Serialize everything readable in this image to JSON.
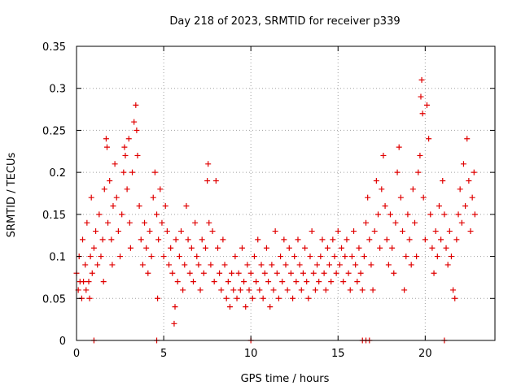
{
  "chart_data": {
    "type": "scatter",
    "title": "Day 218 of 2023, SRMTID for receiver p339",
    "xlabel": "GPS time / hours",
    "ylabel": "SRMTID / TECUs",
    "xlim": [
      0,
      24
    ],
    "ylim": [
      0,
      0.35
    ],
    "x_ticks": [
      0,
      5,
      10,
      15,
      20
    ],
    "y_ticks": [
      0,
      0.05,
      0.1,
      0.15,
      0.2,
      0.25,
      0.3,
      0.35
    ],
    "x_tick_labels": [
      "0",
      "5",
      "10",
      "15",
      "20"
    ],
    "y_tick_labels": [
      "0",
      "0.05",
      "0.1",
      "0.15",
      "0.2",
      "0.25",
      "0.3",
      "0.35"
    ],
    "grid": true,
    "marker": "plus",
    "marker_color": "#e00000",
    "series": [
      {
        "name": "SRMTID",
        "points": [
          [
            0.0,
            0.08
          ],
          [
            0.1,
            0.06
          ],
          [
            0.15,
            0.1
          ],
          [
            0.2,
            0.07
          ],
          [
            0.3,
            0.05
          ],
          [
            0.35,
            0.12
          ],
          [
            0.4,
            0.07
          ],
          [
            0.5,
            0.09
          ],
          [
            0.55,
            0.06
          ],
          [
            0.6,
            0.14
          ],
          [
            0.7,
            0.07
          ],
          [
            0.75,
            0.05
          ],
          [
            0.8,
            0.1
          ],
          [
            0.85,
            0.17
          ],
          [
            0.9,
            0.08
          ],
          [
            1.0,
            0.11
          ],
          [
            1.1,
            0.13
          ],
          [
            1.2,
            0.09
          ],
          [
            1.3,
            0.15
          ],
          [
            1.4,
            0.1
          ],
          [
            1.5,
            0.12
          ],
          [
            1.55,
            0.07
          ],
          [
            1.6,
            0.18
          ],
          [
            1.7,
            0.24
          ],
          [
            1.75,
            0.23
          ],
          [
            1.8,
            0.14
          ],
          [
            1.9,
            0.19
          ],
          [
            2.0,
            0.12
          ],
          [
            2.05,
            0.09
          ],
          [
            2.1,
            0.16
          ],
          [
            2.2,
            0.21
          ],
          [
            2.3,
            0.17
          ],
          [
            2.4,
            0.13
          ],
          [
            2.5,
            0.1
          ],
          [
            2.6,
            0.15
          ],
          [
            2.7,
            0.2
          ],
          [
            2.75,
            0.23
          ],
          [
            2.8,
            0.22
          ],
          [
            2.9,
            0.18
          ],
          [
            3.0,
            0.24
          ],
          [
            3.05,
            0.14
          ],
          [
            3.1,
            0.11
          ],
          [
            3.2,
            0.2
          ],
          [
            3.3,
            0.26
          ],
          [
            3.4,
            0.28
          ],
          [
            3.45,
            0.25
          ],
          [
            3.5,
            0.22
          ],
          [
            3.6,
            0.16
          ],
          [
            3.7,
            0.12
          ],
          [
            3.8,
            0.09
          ],
          [
            3.9,
            0.14
          ],
          [
            4.0,
            0.11
          ],
          [
            4.1,
            0.08
          ],
          [
            4.2,
            0.13
          ],
          [
            4.3,
            0.1
          ],
          [
            4.4,
            0.17
          ],
          [
            4.5,
            0.2
          ],
          [
            4.6,
            0.15
          ],
          [
            4.65,
            0.05
          ],
          [
            4.7,
            0.12
          ],
          [
            4.8,
            0.18
          ],
          [
            4.9,
            0.14
          ],
          [
            5.0,
            0.1
          ],
          [
            5.1,
            0.16
          ],
          [
            5.2,
            0.13
          ],
          [
            5.3,
            0.09
          ],
          [
            5.4,
            0.11
          ],
          [
            5.5,
            0.08
          ],
          [
            5.6,
            0.02
          ],
          [
            5.65,
            0.04
          ],
          [
            5.7,
            0.12
          ],
          [
            5.8,
            0.07
          ],
          [
            5.9,
            0.1
          ],
          [
            6.0,
            0.13
          ],
          [
            6.1,
            0.06
          ],
          [
            6.2,
            0.09
          ],
          [
            6.3,
            0.16
          ],
          [
            6.4,
            0.12
          ],
          [
            6.5,
            0.08
          ],
          [
            6.6,
            0.11
          ],
          [
            6.7,
            0.07
          ],
          [
            6.8,
            0.14
          ],
          [
            6.9,
            0.1
          ],
          [
            7.0,
            0.09
          ],
          [
            7.1,
            0.06
          ],
          [
            7.2,
            0.12
          ],
          [
            7.3,
            0.08
          ],
          [
            7.4,
            0.11
          ],
          [
            7.5,
            0.19
          ],
          [
            7.55,
            0.21
          ],
          [
            7.6,
            0.14
          ],
          [
            7.7,
            0.09
          ],
          [
            7.8,
            0.13
          ],
          [
            7.9,
            0.07
          ],
          [
            8.0,
            0.19
          ],
          [
            8.1,
            0.11
          ],
          [
            8.2,
            0.08
          ],
          [
            8.3,
            0.06
          ],
          [
            8.4,
            0.12
          ],
          [
            8.5,
            0.09
          ],
          [
            8.6,
            0.05
          ],
          [
            8.7,
            0.07
          ],
          [
            8.8,
            0.04
          ],
          [
            8.9,
            0.08
          ],
          [
            9.0,
            0.06
          ],
          [
            9.1,
            0.1
          ],
          [
            9.2,
            0.05
          ],
          [
            9.3,
            0.08
          ],
          [
            9.4,
            0.06
          ],
          [
            9.5,
            0.11
          ],
          [
            9.6,
            0.07
          ],
          [
            9.7,
            0.04
          ],
          [
            9.8,
            0.09
          ],
          [
            9.9,
            0.06
          ],
          [
            10.0,
            0.08
          ],
          [
            10.1,
            0.05
          ],
          [
            10.2,
            0.1
          ],
          [
            10.3,
            0.07
          ],
          [
            10.4,
            0.12
          ],
          [
            10.5,
            0.06
          ],
          [
            10.6,
            0.09
          ],
          [
            10.7,
            0.05
          ],
          [
            10.8,
            0.08
          ],
          [
            10.9,
            0.11
          ],
          [
            11.0,
            0.07
          ],
          [
            11.1,
            0.04
          ],
          [
            11.2,
            0.09
          ],
          [
            11.3,
            0.06
          ],
          [
            11.4,
            0.13
          ],
          [
            11.5,
            0.08
          ],
          [
            11.6,
            0.05
          ],
          [
            11.7,
            0.1
          ],
          [
            11.8,
            0.07
          ],
          [
            11.9,
            0.12
          ],
          [
            12.0,
            0.09
          ],
          [
            12.1,
            0.06
          ],
          [
            12.2,
            0.11
          ],
          [
            12.3,
            0.08
          ],
          [
            12.4,
            0.05
          ],
          [
            12.5,
            0.1
          ],
          [
            12.6,
            0.07
          ],
          [
            12.7,
            0.12
          ],
          [
            12.8,
            0.09
          ],
          [
            12.9,
            0.06
          ],
          [
            13.0,
            0.08
          ],
          [
            13.1,
            0.11
          ],
          [
            13.2,
            0.07
          ],
          [
            13.3,
            0.05
          ],
          [
            13.4,
            0.1
          ],
          [
            13.5,
            0.13
          ],
          [
            13.6,
            0.08
          ],
          [
            13.7,
            0.06
          ],
          [
            13.8,
            0.09
          ],
          [
            13.9,
            0.07
          ],
          [
            14.0,
            0.1
          ],
          [
            14.1,
            0.12
          ],
          [
            14.2,
            0.08
          ],
          [
            14.3,
            0.06
          ],
          [
            14.4,
            0.11
          ],
          [
            14.5,
            0.09
          ],
          [
            14.6,
            0.07
          ],
          [
            14.7,
            0.12
          ],
          [
            14.8,
            0.1
          ],
          [
            14.9,
            0.08
          ],
          [
            15.0,
            0.13
          ],
          [
            15.1,
            0.09
          ],
          [
            15.2,
            0.11
          ],
          [
            15.3,
            0.07
          ],
          [
            15.4,
            0.1
          ],
          [
            15.5,
            0.12
          ],
          [
            15.6,
            0.08
          ],
          [
            15.7,
            0.06
          ],
          [
            15.8,
            0.1
          ],
          [
            15.9,
            0.13
          ],
          [
            16.0,
            0.09
          ],
          [
            16.1,
            0.07
          ],
          [
            16.2,
            0.11
          ],
          [
            16.3,
            0.08
          ],
          [
            16.4,
            0.06
          ],
          [
            16.5,
            0.1
          ],
          [
            16.6,
            0.14
          ],
          [
            16.7,
            0.17
          ],
          [
            16.8,
            0.12
          ],
          [
            16.9,
            0.09
          ],
          [
            17.0,
            0.06
          ],
          [
            17.1,
            0.13
          ],
          [
            17.2,
            0.19
          ],
          [
            17.3,
            0.15
          ],
          [
            17.4,
            0.11
          ],
          [
            17.5,
            0.18
          ],
          [
            17.6,
            0.22
          ],
          [
            17.7,
            0.16
          ],
          [
            17.8,
            0.12
          ],
          [
            17.9,
            0.09
          ],
          [
            18.0,
            0.15
          ],
          [
            18.1,
            0.11
          ],
          [
            18.2,
            0.08
          ],
          [
            18.3,
            0.14
          ],
          [
            18.4,
            0.2
          ],
          [
            18.5,
            0.23
          ],
          [
            18.6,
            0.17
          ],
          [
            18.7,
            0.13
          ],
          [
            18.8,
            0.06
          ],
          [
            18.9,
            0.1
          ],
          [
            19.0,
            0.15
          ],
          [
            19.1,
            0.12
          ],
          [
            19.2,
            0.09
          ],
          [
            19.3,
            0.18
          ],
          [
            19.4,
            0.14
          ],
          [
            19.5,
            0.1
          ],
          [
            19.6,
            0.2
          ],
          [
            19.7,
            0.22
          ],
          [
            19.75,
            0.29
          ],
          [
            19.8,
            0.31
          ],
          [
            19.85,
            0.27
          ],
          [
            19.9,
            0.17
          ],
          [
            20.0,
            0.12
          ],
          [
            20.1,
            0.28
          ],
          [
            20.2,
            0.24
          ],
          [
            20.3,
            0.15
          ],
          [
            20.4,
            0.11
          ],
          [
            20.5,
            0.08
          ],
          [
            20.6,
            0.13
          ],
          [
            20.7,
            0.1
          ],
          [
            20.8,
            0.16
          ],
          [
            20.9,
            0.12
          ],
          [
            21.0,
            0.19
          ],
          [
            21.1,
            0.15
          ],
          [
            21.2,
            0.11
          ],
          [
            21.3,
            0.09
          ],
          [
            21.4,
            0.13
          ],
          [
            21.5,
            0.1
          ],
          [
            21.6,
            0.06
          ],
          [
            21.7,
            0.05
          ],
          [
            21.8,
            0.12
          ],
          [
            21.9,
            0.15
          ],
          [
            22.0,
            0.18
          ],
          [
            22.1,
            0.14
          ],
          [
            22.2,
            0.21
          ],
          [
            22.3,
            0.16
          ],
          [
            22.4,
            0.24
          ],
          [
            22.5,
            0.19
          ],
          [
            22.6,
            0.13
          ],
          [
            22.7,
            0.17
          ],
          [
            22.8,
            0.2
          ],
          [
            22.85,
            0.15
          ],
          [
            1.0,
            0.0
          ],
          [
            4.6,
            0.0
          ],
          [
            10.0,
            0.0
          ],
          [
            16.4,
            0.0
          ],
          [
            16.6,
            0.0
          ],
          [
            16.8,
            0.0
          ],
          [
            21.1,
            0.0
          ]
        ]
      }
    ]
  }
}
